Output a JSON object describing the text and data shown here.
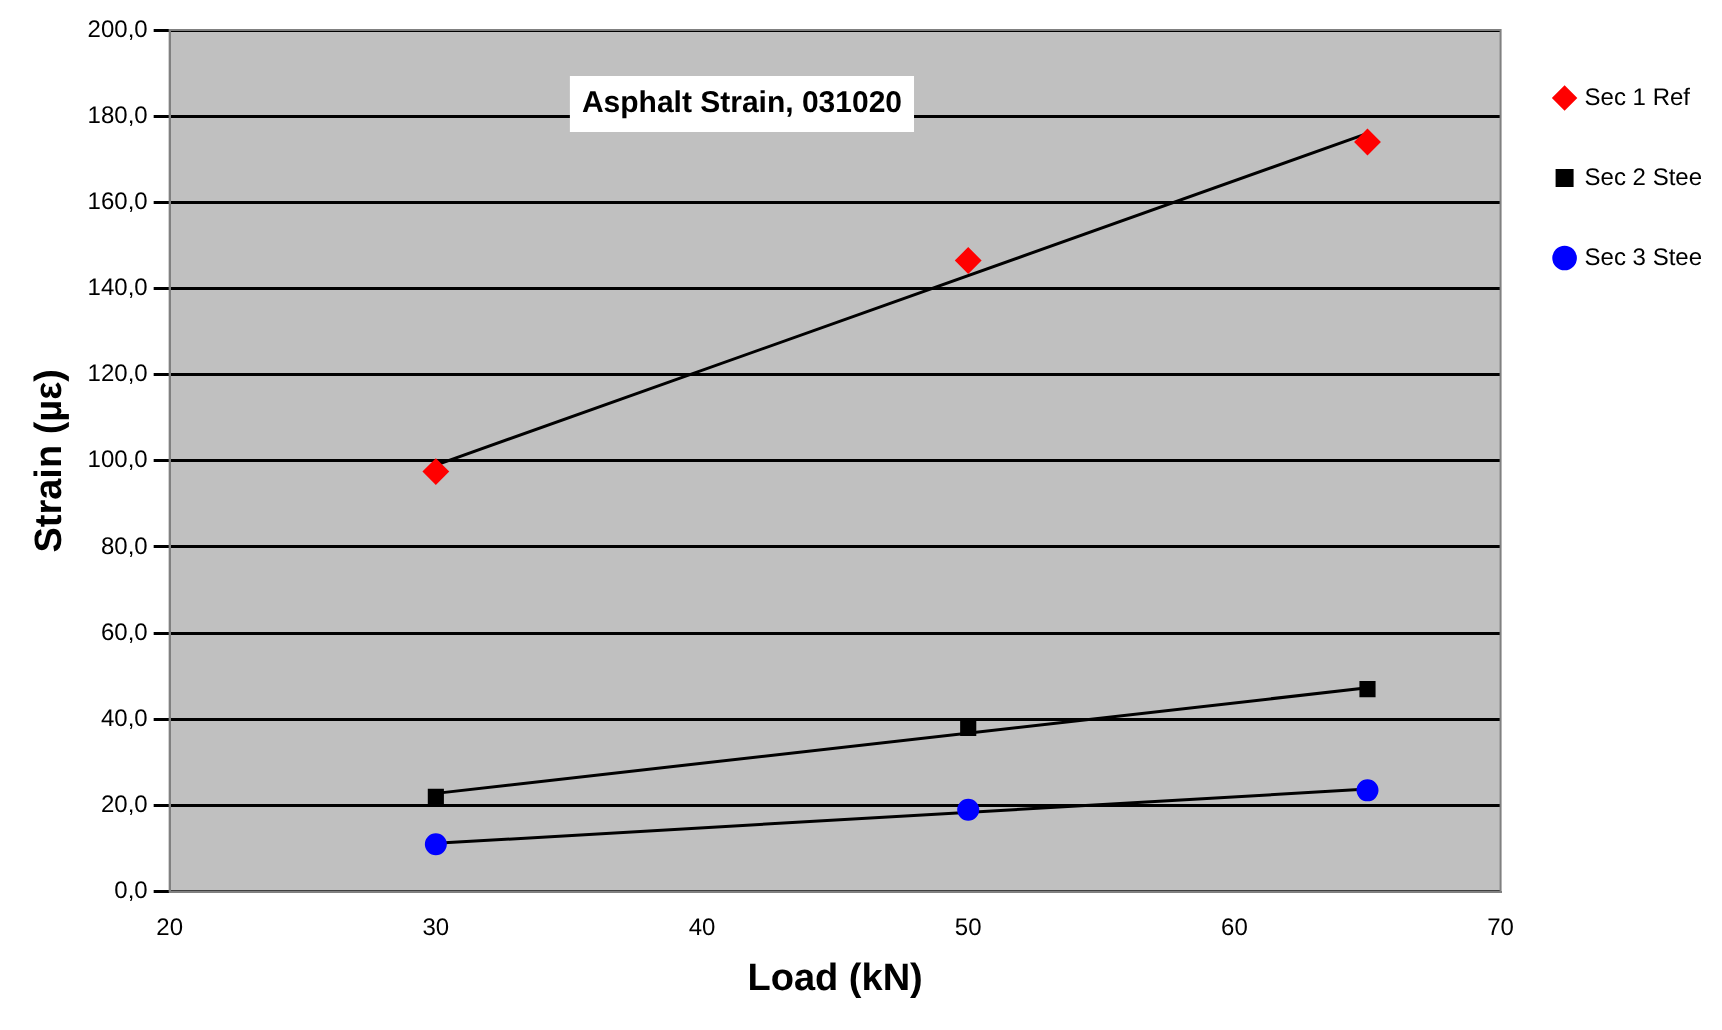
{
  "chart_data": {
    "type": "scatter",
    "title": "Asphalt Strain, 031020",
    "xlabel": "Load (kN)",
    "ylabel": "Strain (µε)",
    "xlim": [
      20,
      70
    ],
    "xticks": [
      20,
      30,
      40,
      50,
      60,
      70
    ],
    "ylim": [
      0,
      200
    ],
    "yticks": [
      {
        "value": 0,
        "label": "0,0"
      },
      {
        "value": 20,
        "label": "20,0"
      },
      {
        "value": 40,
        "label": "40,0"
      },
      {
        "value": 60,
        "label": "60,0"
      },
      {
        "value": 80,
        "label": "80,0"
      },
      {
        "value": 100,
        "label": "100,0"
      },
      {
        "value": 120,
        "label": "120,0"
      },
      {
        "value": 140,
        "label": "140,0"
      },
      {
        "value": 160,
        "label": "160,0"
      },
      {
        "value": 180,
        "label": "180,0"
      },
      {
        "value": 200,
        "label": "200,0"
      }
    ],
    "grid": "y",
    "legend": "right",
    "series": [
      {
        "name": "Sec 1 Ref",
        "color": "#ff0000",
        "marker": "diamond",
        "x": [
          30,
          50,
          65
        ],
        "values": [
          97.5,
          146.5,
          174
        ]
      },
      {
        "name": "Sec 2 Stee",
        "color": "#000000",
        "marker": "square",
        "x": [
          30,
          50,
          65
        ],
        "values": [
          22,
          38,
          47
        ]
      },
      {
        "name": "Sec 3 Stee",
        "color": "#0000ff",
        "marker": "circle",
        "x": [
          30,
          50,
          65
        ],
        "values": [
          11,
          19,
          23.5
        ]
      },
      {
        "type": "line",
        "color": "#000000",
        "marker": "none",
        "x": [
          30,
          65
        ],
        "values": [
          99,
          176
        ]
      },
      {
        "type": "line",
        "color": "#000000",
        "marker": "none",
        "x": [
          30,
          65
        ],
        "values": [
          22.8,
          47.3
        ]
      },
      {
        "type": "line",
        "color": "#000000",
        "marker": "none",
        "x": [
          30,
          65
        ],
        "values": [
          11.2,
          23.8
        ]
      }
    ]
  }
}
